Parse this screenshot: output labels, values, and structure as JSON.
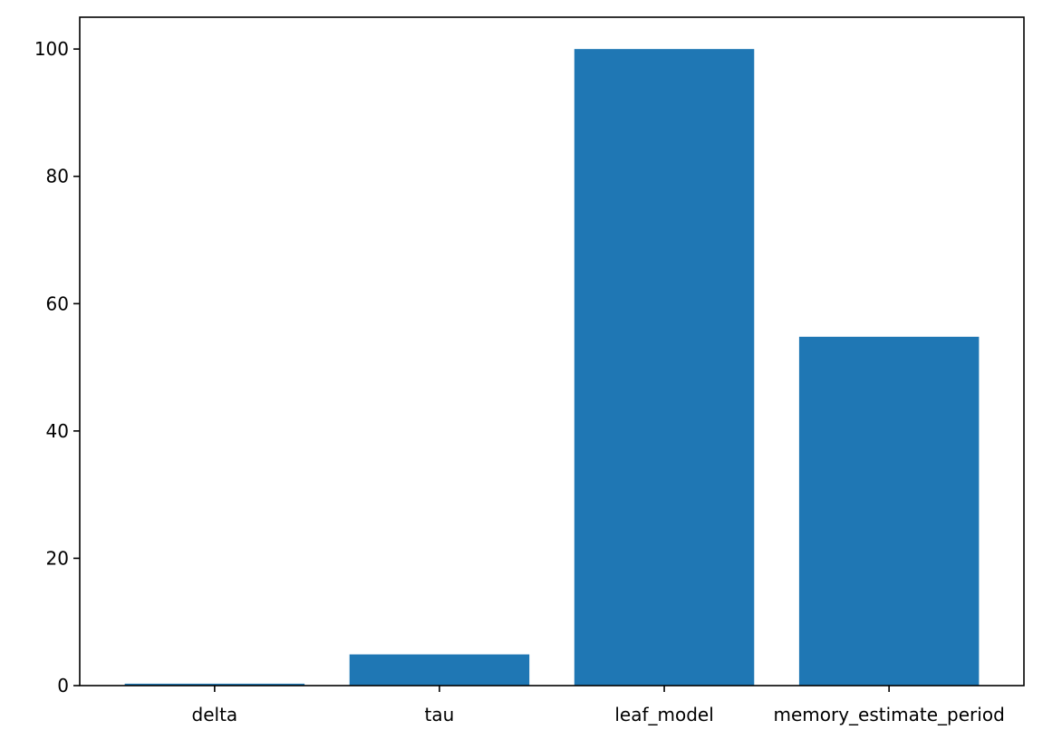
{
  "chart_data": {
    "type": "bar",
    "title": "",
    "xlabel": "",
    "ylabel": "",
    "categories": [
      "delta",
      "tau",
      "leaf_model",
      "memory_estimate_period"
    ],
    "values": [
      0.3,
      4.9,
      100,
      54.8
    ],
    "ylim": [
      0,
      105
    ],
    "yticks": [
      0,
      20,
      40,
      60,
      80,
      100
    ],
    "ytick_labels": [
      "0",
      "20",
      "40",
      "60",
      "80",
      "100"
    ],
    "bar_color": "#1f77b4",
    "grid": false,
    "legend": "none"
  }
}
